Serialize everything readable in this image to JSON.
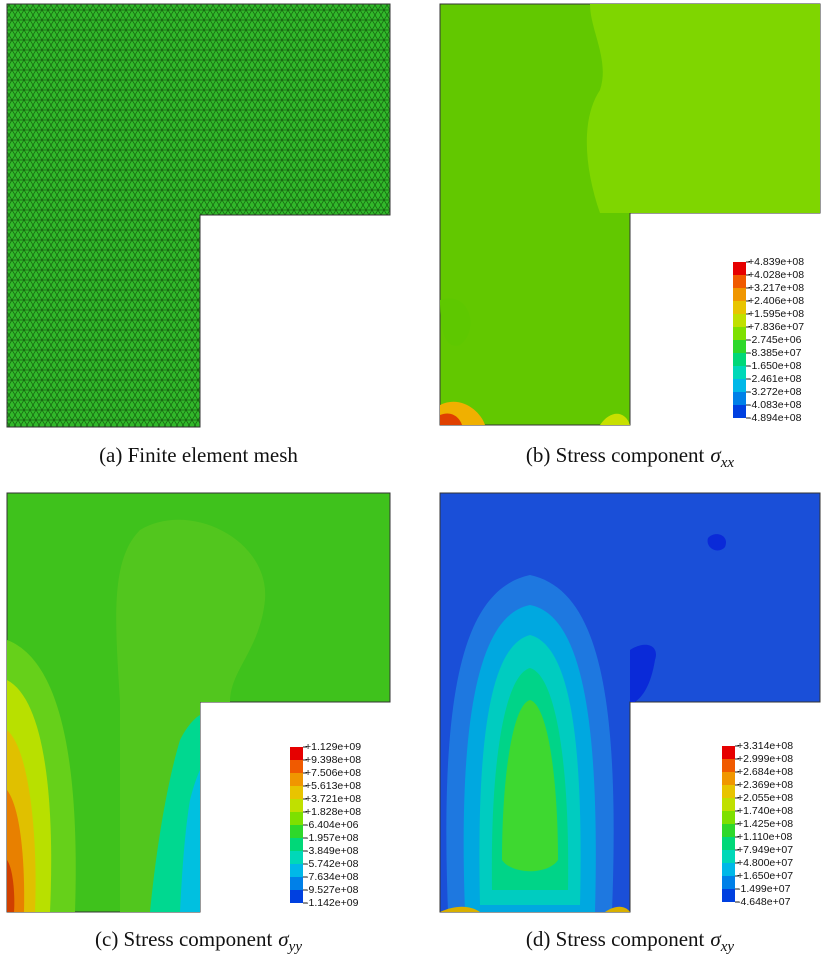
{
  "panels": [
    {
      "caption": "(a) Finite element mesh"
    },
    {
      "caption": "(b) Stress component",
      "symbol": "σ",
      "subscript": "xx",
      "legend": [
        "+4.839e+08",
        "+4.028e+08",
        "+3.217e+08",
        "+2.406e+08",
        "+1.595e+08",
        "+7.836e+07",
        "-2.745e+06",
        "-8.385e+07",
        "-1.650e+08",
        "-2.461e+08",
        "-3.272e+08",
        "-4.083e+08",
        "-4.894e+08"
      ]
    },
    {
      "caption": "(c) Stress component",
      "symbol": "σ",
      "subscript": "yy",
      "legend": [
        "+1.129e+09",
        "+9.398e+08",
        "+7.506e+08",
        "+5.613e+08",
        "+3.721e+08",
        "+1.828e+08",
        "-6.404e+06",
        "-1.957e+08",
        "-3.849e+08",
        "-5.742e+08",
        "-7.634e+08",
        "-9.527e+08",
        "-1.142e+09"
      ]
    },
    {
      "caption": "(d) Stress component",
      "symbol": "σ",
      "subscript": "xy",
      "legend": [
        "+3.314e+08",
        "+2.999e+08",
        "+2.684e+08",
        "+2.369e+08",
        "+2.055e+08",
        "+1.740e+08",
        "+1.425e+08",
        "+1.110e+08",
        "+7.949e+07",
        "+4.800e+07",
        "+1.650e+07",
        "-1.499e+07",
        "-4.648e+07"
      ]
    }
  ]
}
